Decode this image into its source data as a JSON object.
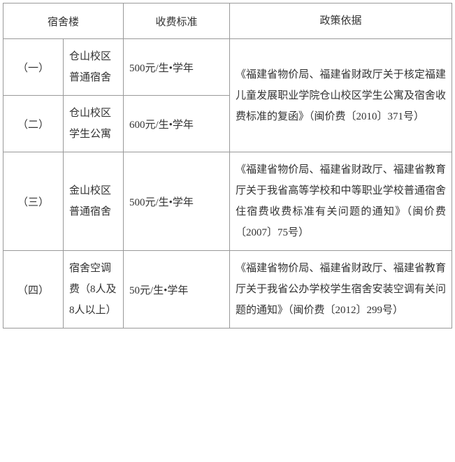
{
  "headers": {
    "dorm": "宿舍楼",
    "fee": "收费标准",
    "policy": "政策依据"
  },
  "rows": [
    {
      "index": "（一）",
      "dorm": "仓山校区普通宿舍",
      "fee": "500元/生•学年"
    },
    {
      "index": "（二）",
      "dorm": "仓山校区学生公寓",
      "fee": "600元/生•学年"
    },
    {
      "index": "（三）",
      "dorm": "金山校区普通宿舍",
      "fee": "500元/生•学年"
    },
    {
      "index": "（四）",
      "dorm": "宿舍空调费（8人及8人以上）",
      "fee": "50元/生•学年"
    }
  ],
  "policies": {
    "policy1": "《福建省物价局、福建省财政厅关于核定福建儿童发展职业学院仓山校区学生公寓及宿舍收费标准的复函》（闽价费〔2010〕371号）",
    "policy2": "《福建省物价局、福建省财政厅、福建省教育厅关于我省高等学校和中等职业学校普通宿舍住宿费收费标准有关问题的通知》（闽价费〔2007〕75号）",
    "policy3": "《福建省物价局、福建省财政厅、福建省教育厅关于我省公办学校学生宿舍安装空调有关问题的通知》（闽价费〔2012〕299号）"
  }
}
